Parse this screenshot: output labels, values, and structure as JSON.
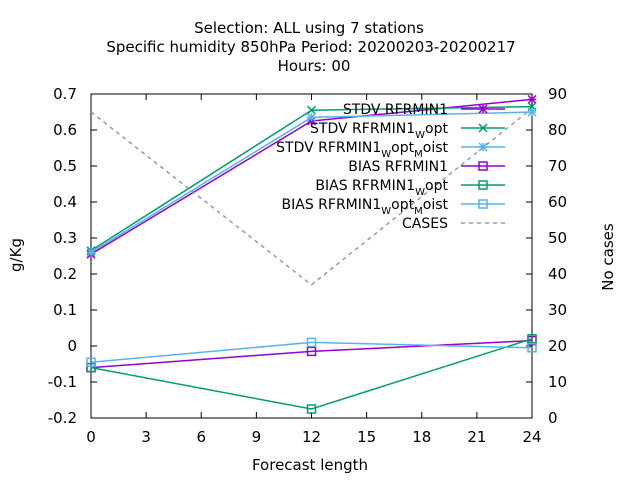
{
  "chart_data": {
    "type": "line",
    "title_lines": [
      "Selection: ALL using     7 stations",
      "Specific humidity 850hPa   Period: 20200203-20200217",
      "Hours:  00"
    ],
    "xlabel": "Forecast length",
    "ylabel": "g/Kg",
    "y2label": "No cases",
    "xlim": [
      0,
      24
    ],
    "ylim": [
      -0.2,
      0.7
    ],
    "y2lim": [
      0,
      90
    ],
    "xticks": [
      0,
      3,
      6,
      9,
      12,
      15,
      18,
      21,
      24
    ],
    "yticks": [
      -0.2,
      -0.1,
      0,
      0.1,
      0.2,
      0.3,
      0.4,
      0.5,
      0.6,
      0.7
    ],
    "ytick_labels": [
      "-0.2",
      "-0.1",
      "0",
      "0.1",
      "0.2",
      "0.3",
      "0.4",
      "0.5",
      "0.6",
      "0.7"
    ],
    "y2ticks": [
      0,
      10,
      20,
      30,
      40,
      50,
      60,
      70,
      80,
      90
    ],
    "grid": false,
    "legend_position": "top-right",
    "x": [
      0,
      12,
      24
    ],
    "series": [
      {
        "name": "STDV RFRMIN1",
        "label_main": "STDV RFRMIN1",
        "subs": [],
        "values": [
          0.255,
          0.625,
          0.685
        ],
        "color": "#9400d3",
        "marker": "star",
        "axis": "y1",
        "dash": false
      },
      {
        "name": "STDV RFRMIN1_W opt",
        "label_main": "STDV RFRMIN1",
        "subs": [
          "W",
          "opt"
        ],
        "values": [
          0.265,
          0.655,
          0.665
        ],
        "color": "#009e73",
        "marker": "x",
        "axis": "y1",
        "dash": false
      },
      {
        "name": "STDV RFRMIN1_W opt_M oist",
        "label_main": "STDV RFRMIN1",
        "subs": [
          "W",
          "opt",
          "M",
          "oist"
        ],
        "values": [
          0.26,
          0.635,
          0.65
        ],
        "color": "#56b4e9",
        "marker": "star",
        "axis": "y1",
        "dash": false
      },
      {
        "name": "BIAS RFRMIN1",
        "label_main": "BIAS RFRMIN1",
        "subs": [],
        "values": [
          -0.06,
          -0.015,
          0.015
        ],
        "color": "#9400d3",
        "marker": "square",
        "axis": "y1",
        "dash": false
      },
      {
        "name": "BIAS RFRMIN1_W opt",
        "label_main": "BIAS RFRMIN1",
        "subs": [
          "W",
          "opt"
        ],
        "values": [
          -0.06,
          -0.175,
          0.02
        ],
        "color": "#009e73",
        "marker": "square",
        "axis": "y1",
        "dash": false
      },
      {
        "name": "BIAS RFRMIN1_W opt_M oist",
        "label_main": "BIAS RFRMIN1",
        "subs": [
          "W",
          "opt",
          "M",
          "oist"
        ],
        "values": [
          -0.045,
          0.01,
          -0.005
        ],
        "color": "#56b4e9",
        "marker": "square",
        "axis": "y1",
        "dash": false
      },
      {
        "name": "CASES",
        "label_main": "CASES",
        "subs": [],
        "values": [
          85,
          37,
          86
        ],
        "color": "#999999",
        "marker": "none",
        "axis": "y2",
        "dash": true
      }
    ]
  }
}
